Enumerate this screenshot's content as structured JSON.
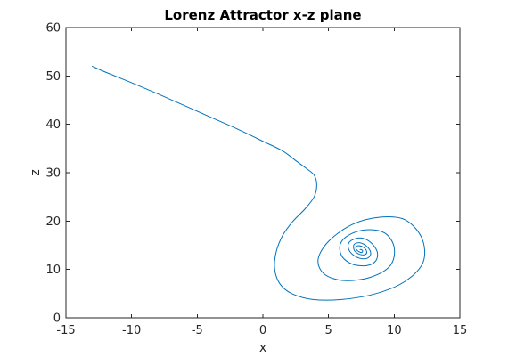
{
  "chart_data": {
    "type": "line",
    "title": "Lorenz Attractor x-z plane",
    "xlabel": "x",
    "ylabel": "z",
    "xlim": [
      -15,
      15
    ],
    "ylim": [
      0,
      60
    ],
    "xticks": [
      -15,
      -10,
      -5,
      0,
      5,
      10,
      15
    ],
    "yticks": [
      0,
      10,
      20,
      30,
      40,
      50,
      60
    ],
    "xtick_labels": [
      "-15",
      "-10",
      "-5",
      "0",
      "5",
      "10",
      "15"
    ],
    "ytick_labels": [
      "0",
      "10",
      "20",
      "30",
      "40",
      "50",
      "60"
    ],
    "grid": false,
    "box": true,
    "series_color": "#0072BD",
    "series": [
      {
        "x": [
          -13,
          -12,
          -10,
          -8,
          -6,
          -4,
          -2,
          0,
          1.5,
          2.5,
          3.3,
          3.9,
          4.1,
          3.9,
          3.2,
          2.3,
          1.5,
          1.0,
          0.9,
          1.3,
          2.2,
          3.8,
          6.0,
          8.6,
          10.8,
          12.2,
          12.1,
          10.8,
          8.9,
          6.8,
          5.0,
          4.2,
          4.7,
          6.2,
          8.2,
          9.7,
          10.0,
          9.3,
          7.9,
          6.6,
          5.9,
          6.0,
          6.8,
          7.9,
          8.6,
          8.7,
          8.2,
          7.5,
          6.8,
          6.5,
          6.6,
          7.1,
          7.7,
          8.1,
          8.2,
          7.9,
          7.4,
          7.0,
          6.9,
          7.0,
          7.4,
          7.8,
          7.9,
          7.7,
          7.3,
          7.1,
          7.1,
          7.3,
          7.5,
          7.6,
          7.5,
          7.4
        ],
        "y": [
          52,
          50.8,
          48.6,
          46.3,
          43.9,
          41.5,
          39.1,
          36.5,
          34.5,
          32.5,
          30.9,
          29.5,
          27.5,
          25,
          22.5,
          20,
          17,
          13.5,
          10,
          7,
          5,
          3.8,
          3.8,
          5,
          7.5,
          11.5,
          16.5,
          20.3,
          20.8,
          19.3,
          15.8,
          12,
          9,
          7.7,
          8.4,
          10.8,
          14.5,
          17.5,
          18.2,
          17.2,
          15.3,
          12.8,
          11.1,
          10.8,
          11.8,
          13.7,
          15.6,
          16.5,
          16.1,
          15.2,
          13.8,
          12.6,
          12.2,
          12.6,
          13.6,
          14.8,
          15.5,
          15.3,
          14.7,
          13.8,
          13.1,
          13.1,
          13.7,
          14.5,
          14.9,
          14.7,
          14.2,
          13.7,
          13.5,
          13.8,
          14.1,
          14.1
        ]
      }
    ]
  }
}
